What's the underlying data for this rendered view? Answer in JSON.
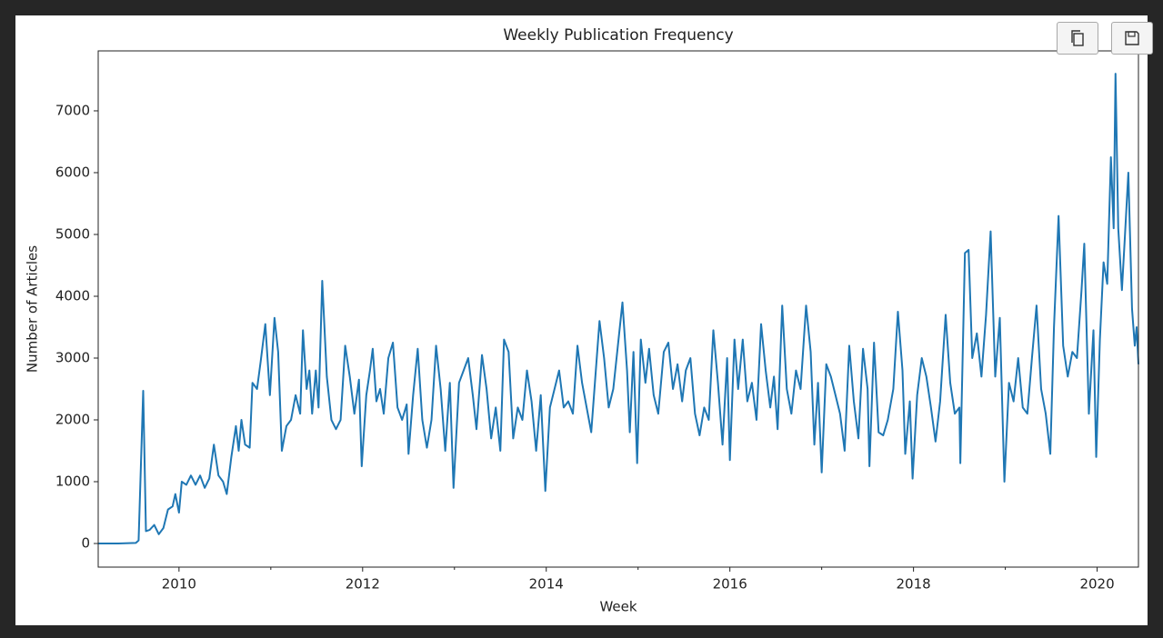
{
  "chart_data": {
    "type": "line",
    "title": "Weekly Publication Frequency",
    "xlabel": "Week",
    "ylabel": "Number of Articles",
    "color": "#1f77b4",
    "x": [
      2009.12,
      2009.34,
      2009.53,
      2009.56,
      2009.61,
      2009.64,
      2009.68,
      2009.73,
      2009.78,
      2009.83,
      2009.88,
      2009.93,
      2009.96,
      2010.0,
      2010.03,
      2010.08,
      2010.13,
      2010.18,
      2010.23,
      2010.28,
      2010.33,
      2010.38,
      2010.43,
      2010.48,
      2010.52,
      2010.57,
      2010.62,
      2010.65,
      2010.68,
      2010.72,
      2010.77,
      2010.8,
      2010.85,
      2010.89,
      2010.94,
      2010.99,
      2011.04,
      2011.08,
      2011.12,
      2011.17,
      2011.22,
      2011.27,
      2011.32,
      2011.35,
      2011.39,
      2011.42,
      2011.45,
      2011.49,
      2011.52,
      2011.56,
      2011.61,
      2011.66,
      2011.71,
      2011.76,
      2011.81,
      2011.86,
      2011.91,
      2011.96,
      2011.99,
      2012.04,
      2012.08,
      2012.11,
      2012.15,
      2012.19,
      2012.23,
      2012.28,
      2012.33,
      2012.38,
      2012.43,
      2012.48,
      2012.5,
      2012.55,
      2012.6,
      2012.65,
      2012.7,
      2012.75,
      2012.8,
      2012.85,
      2012.9,
      2012.95,
      2012.99,
      2013.05,
      2013.1,
      2013.15,
      2013.2,
      2013.24,
      2013.3,
      2013.35,
      2013.4,
      2013.45,
      2013.5,
      2013.54,
      2013.59,
      2013.64,
      2013.69,
      2013.74,
      2013.79,
      2013.84,
      2013.89,
      2013.94,
      2013.99,
      2014.04,
      2014.09,
      2014.14,
      2014.19,
      2014.24,
      2014.29,
      2014.34,
      2014.39,
      2014.44,
      2014.49,
      2014.53,
      2014.58,
      2014.63,
      2014.68,
      2014.73,
      2014.78,
      2014.83,
      2014.88,
      2014.91,
      2014.95,
      2014.99,
      2015.03,
      2015.08,
      2015.12,
      2015.17,
      2015.22,
      2015.28,
      2015.33,
      2015.38,
      2015.43,
      2015.48,
      2015.52,
      2015.57,
      2015.62,
      2015.67,
      2015.72,
      2015.77,
      2015.82,
      2015.87,
      2015.92,
      2015.97,
      2016.0,
      2016.05,
      2016.09,
      2016.14,
      2016.19,
      2016.24,
      2016.29,
      2016.34,
      2016.39,
      2016.44,
      2016.48,
      2016.52,
      2016.57,
      2016.62,
      2016.67,
      2016.72,
      2016.77,
      2016.83,
      2016.88,
      2016.92,
      2016.96,
      2017.0,
      2017.05,
      2017.1,
      2017.15,
      2017.2,
      2017.25,
      2017.3,
      2017.35,
      2017.4,
      2017.45,
      2017.5,
      2017.52,
      2017.57,
      2017.62,
      2017.67,
      2017.72,
      2017.78,
      2017.83,
      2017.88,
      2017.91,
      2017.96,
      2017.99,
      2018.04,
      2018.09,
      2018.14,
      2018.19,
      2018.24,
      2018.29,
      2018.35,
      2018.4,
      2018.45,
      2018.5,
      2018.51,
      2018.56,
      2018.6,
      2018.64,
      2018.69,
      2018.74,
      2018.79,
      2018.84,
      2018.89,
      2018.94,
      2018.99,
      2019.04,
      2019.09,
      2019.14,
      2019.19,
      2019.24,
      2019.29,
      2019.34,
      2019.39,
      2019.44,
      2019.49,
      2019.53,
      2019.58,
      2019.63,
      2019.68,
      2019.73,
      2019.78,
      2019.83,
      2019.86,
      2019.91,
      2019.96,
      2019.99,
      2020.03,
      2020.07,
      2020.11,
      2020.15,
      2020.18,
      2020.2,
      2020.23,
      2020.27,
      2020.3,
      2020.34,
      2020.38,
      2020.41,
      2020.43,
      2020.45
    ],
    "values": [
      0,
      0,
      10,
      50,
      2470,
      200,
      220,
      300,
      150,
      250,
      550,
      600,
      800,
      500,
      1000,
      950,
      1100,
      950,
      1100,
      900,
      1050,
      1600,
      1100,
      1000,
      800,
      1400,
      1900,
      1500,
      2000,
      1600,
      1550,
      2600,
      2500,
      2950,
      3550,
      2400,
      3650,
      3100,
      1500,
      1900,
      2000,
      2400,
      2100,
      3450,
      2500,
      2800,
      2100,
      2800,
      2200,
      4250,
      2700,
      2000,
      1850,
      2000,
      3200,
      2700,
      2100,
      2650,
      1250,
      2400,
      2800,
      3150,
      2300,
      2500,
      2100,
      3000,
      3250,
      2200,
      2000,
      2250,
      1450,
      2400,
      3150,
      2000,
      1550,
      2000,
      3200,
      2500,
      1500,
      2600,
      900,
      2600,
      2800,
      3000,
      2400,
      1850,
      3050,
      2500,
      1700,
      2200,
      1500,
      3300,
      3100,
      1700,
      2200,
      2000,
      2800,
      2300,
      1500,
      2400,
      850,
      2200,
      2500,
      2800,
      2200,
      2300,
      2100,
      3200,
      2600,
      2200,
      1800,
      2600,
      3600,
      3000,
      2200,
      2500,
      3200,
      3900,
      2800,
      1800,
      3100,
      1300,
      3300,
      2600,
      3150,
      2400,
      2100,
      3100,
      3250,
      2500,
      2900,
      2300,
      2800,
      3000,
      2100,
      1750,
      2200,
      2000,
      3450,
      2600,
      1600,
      3000,
      1350,
      3300,
      2500,
      3300,
      2300,
      2600,
      2000,
      3550,
      2800,
      2200,
      2700,
      1850,
      3850,
      2500,
      2100,
      2800,
      2500,
      3850,
      3100,
      1600,
      2600,
      1150,
      2900,
      2700,
      2400,
      2100,
      1500,
      3200,
      2300,
      1700,
      3150,
      2500,
      1250,
      3250,
      1800,
      1750,
      2000,
      2500,
      3750,
      2800,
      1450,
      2300,
      1050,
      2400,
      3000,
      2700,
      2200,
      1650,
      2300,
      3700,
      2600,
      2100,
      2200,
      1300,
      4700,
      4750,
      3000,
      3400,
      2700,
      3700,
      5050,
      2700,
      3650,
      1000,
      2600,
      2300,
      3000,
      2200,
      2100,
      3000,
      3850,
      2500,
      2100,
      1450,
      3500,
      5300,
      3200,
      2700,
      3100,
      3000,
      4100,
      4850,
      2100,
      3450,
      1400,
      3300,
      4550,
      4200,
      6250,
      5100,
      7600,
      5100,
      4100,
      4900,
      6000,
      3800,
      3200,
      3500,
      2900
    ],
    "xlim": [
      2009.12,
      2020.45
    ],
    "xticks": [
      2010,
      2012,
      2014,
      2016,
      2018,
      2020
    ],
    "xminorticks": [
      2011,
      2013,
      2015,
      2017,
      2019
    ],
    "ylim": [
      -382,
      7970
    ],
    "yticks": [
      0,
      1000,
      2000,
      3000,
      4000,
      5000,
      6000,
      7000
    ],
    "grid": false
  }
}
